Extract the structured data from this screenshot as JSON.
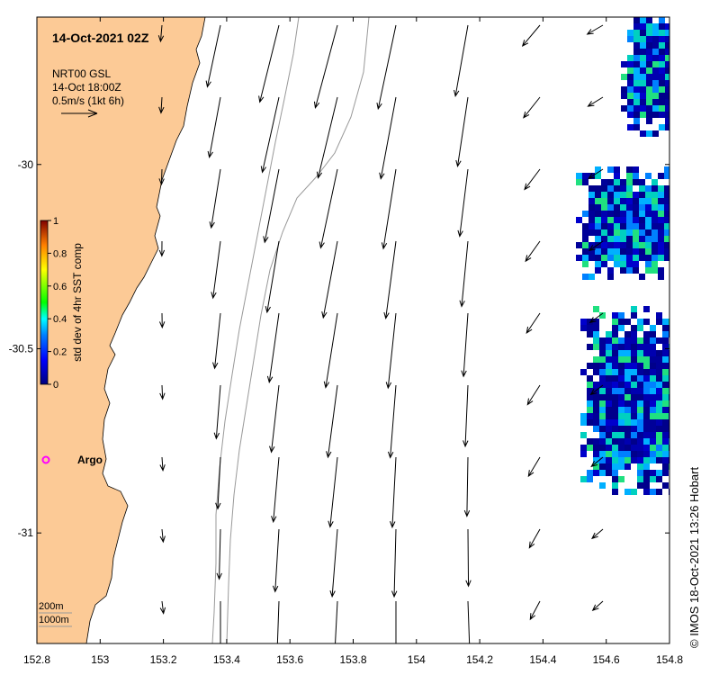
{
  "map": {
    "title": "14-Oct-2021 02Z",
    "current_legend": {
      "line1": "NRT00 GSL",
      "line2": "14-Oct 18:00Z",
      "line3": "0.5m/s (1kt 6h)"
    },
    "colorbar": {
      "label": "std dev of 4hr SST comp",
      "ticks": [
        "0",
        "0.2",
        "0.4",
        "0.6",
        "0.8",
        "1"
      ],
      "min": 0,
      "max": 1
    },
    "argo_label": "Argo",
    "contours": {
      "shallow": "200m",
      "deep": "1000m"
    },
    "credit": "© IMOS 18-Oct-2021 13:26 Hobart",
    "x_ticks": [
      "152.8",
      "153",
      "153.2",
      "153.4",
      "153.6",
      "153.8",
      "154",
      "154.2",
      "154.4",
      "154.6",
      "154.8"
    ],
    "y_ticks": [
      "-30",
      "-30.5",
      "-31"
    ],
    "extent": {
      "lon": [
        152.8,
        154.8
      ],
      "lat": [
        -31.3,
        -29.6
      ]
    },
    "colors": {
      "land": "#FCCA96",
      "ocean": "#ffffff",
      "argo_marker": "#ff00ff",
      "sst_low": "#00008b",
      "contour": "#999999"
    }
  }
}
